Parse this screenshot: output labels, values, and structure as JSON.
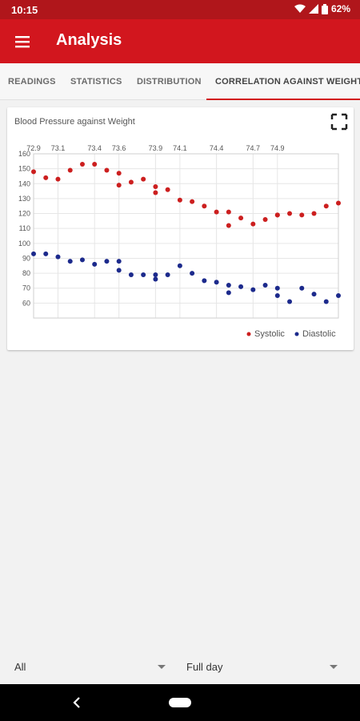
{
  "status": {
    "time": "10:15",
    "battery": "62%"
  },
  "app_bar": {
    "title": "Analysis"
  },
  "tabs": [
    {
      "label": "READINGS"
    },
    {
      "label": "STATISTICS"
    },
    {
      "label": "DISTRIBUTION"
    },
    {
      "label": "CORRELATION AGAINST WEIGHT"
    }
  ],
  "card": {
    "title": "Blood Pressure against Weight"
  },
  "colors": {
    "systolic": "#cc1f1f",
    "diastolic": "#1c2a8c",
    "accent": "#d2161e"
  },
  "chart_data": {
    "type": "scatter",
    "title": "Blood Pressure against Weight",
    "xlabel": "",
    "ylabel": "",
    "xlim": [
      72.9,
      75.4
    ],
    "ylim": [
      50,
      160
    ],
    "x_ticks": [
      "72.9",
      "73.1",
      "73.4",
      "73.6",
      "73.9",
      "74.1",
      "74.4",
      "74.7",
      "74.9"
    ],
    "y_ticks": [
      "60",
      "70",
      "80",
      "90",
      "100",
      "110",
      "120",
      "130",
      "140",
      "150",
      "160"
    ],
    "x_axis_position": "top",
    "grid": true,
    "legend": "bottom-right",
    "series": [
      {
        "name": "Systolic",
        "x": [
          72.9,
          73.0,
          73.1,
          73.2,
          73.3,
          73.4,
          73.5,
          73.6,
          73.6,
          73.7,
          73.8,
          73.9,
          73.9,
          74.0,
          74.1,
          74.2,
          74.3,
          74.4,
          74.5,
          74.5,
          74.6,
          74.7,
          74.8,
          74.9,
          74.9,
          75.0,
          75.1,
          75.2,
          75.3,
          75.4
        ],
        "values": [
          148,
          144,
          143,
          149,
          153,
          153,
          149,
          147,
          139,
          141,
          143,
          134,
          138,
          136,
          129,
          128,
          125,
          121,
          121,
          112,
          117,
          113,
          116,
          119,
          119,
          120,
          119,
          120,
          125,
          127
        ]
      },
      {
        "name": "Diastolic",
        "x": [
          72.9,
          73.0,
          73.1,
          73.2,
          73.3,
          73.4,
          73.5,
          73.6,
          73.6,
          73.7,
          73.8,
          73.9,
          73.9,
          74.0,
          74.1,
          74.2,
          74.3,
          74.4,
          74.5,
          74.5,
          74.6,
          74.7,
          74.8,
          74.9,
          74.9,
          75.0,
          75.1,
          75.2,
          75.3,
          75.4
        ],
        "values": [
          93,
          93,
          91,
          88,
          89,
          86,
          88,
          88,
          82,
          79,
          79,
          79,
          76,
          79,
          85,
          80,
          75,
          74,
          72,
          67,
          71,
          69,
          72,
          70,
          65,
          61,
          70,
          66,
          61,
          65
        ]
      }
    ]
  },
  "filters": [
    {
      "label": "All"
    },
    {
      "label": "Full day"
    }
  ]
}
